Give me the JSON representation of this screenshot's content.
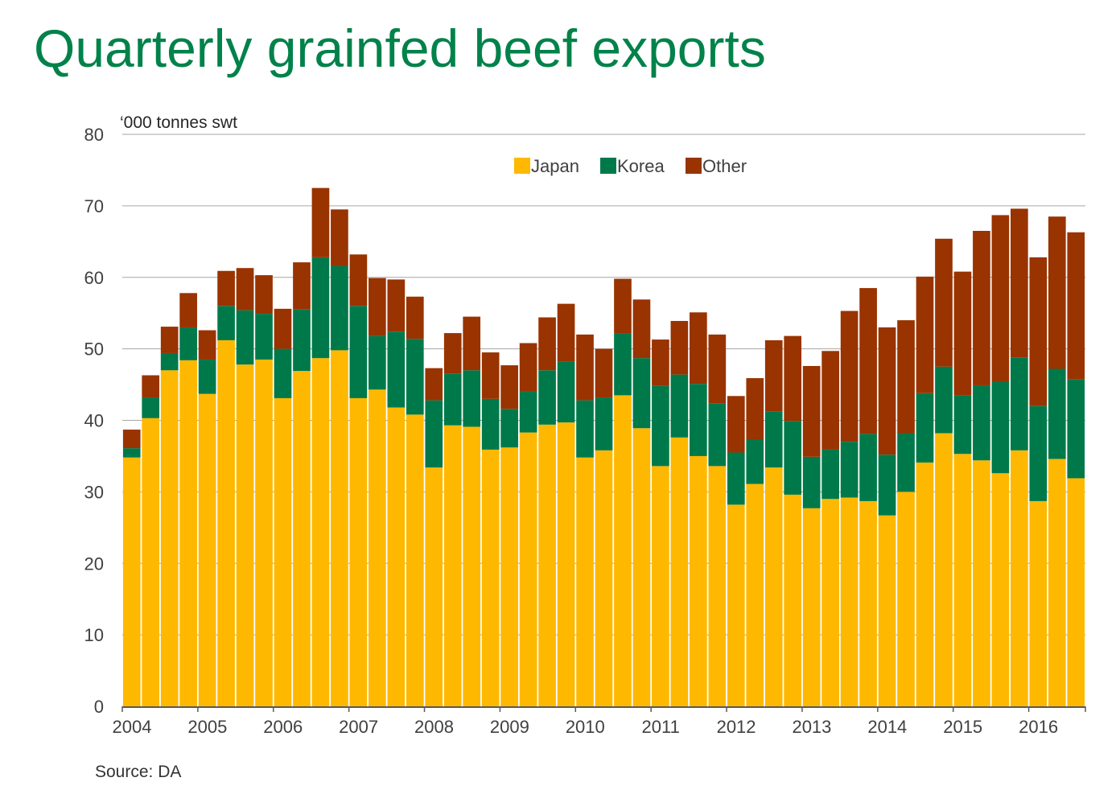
{
  "chart_data": {
    "type": "bar",
    "stacked": true,
    "title": "Quarterly grainfed beef exports",
    "ylabel": "‘000 tonnes swt",
    "source": "Source: DA",
    "ylim": [
      0,
      80
    ],
    "yticks": [
      0,
      10,
      20,
      30,
      40,
      50,
      60,
      70,
      80
    ],
    "year_labels": [
      "2004",
      "2005",
      "2006",
      "2007",
      "2008",
      "2009",
      "2010",
      "2011",
      "2012",
      "2013",
      "2014",
      "2015",
      "2016"
    ],
    "legend_position": "top-center",
    "grid": true,
    "categories": [
      "2004 Q1",
      "2004 Q2",
      "2004 Q3",
      "2004 Q4",
      "2005 Q1",
      "2005 Q2",
      "2005 Q3",
      "2005 Q4",
      "2006 Q1",
      "2006 Q2",
      "2006 Q3",
      "2006 Q4",
      "2007 Q1",
      "2007 Q2",
      "2007 Q3",
      "2007 Q4",
      "2008 Q1",
      "2008 Q2",
      "2008 Q3",
      "2008 Q4",
      "2009 Q1",
      "2009 Q2",
      "2009 Q3",
      "2009 Q4",
      "2010 Q1",
      "2010 Q2",
      "2010 Q3",
      "2010 Q4",
      "2011 Q1",
      "2011 Q2",
      "2011 Q3",
      "2011 Q4",
      "2012 Q1",
      "2012 Q2",
      "2012 Q3",
      "2012 Q4",
      "2013 Q1",
      "2013 Q2",
      "2013 Q3",
      "2013 Q4",
      "2014 Q1",
      "2014 Q2",
      "2014 Q3",
      "2014 Q4",
      "2015 Q1",
      "2015 Q2",
      "2015 Q3",
      "2015 Q4",
      "2016 Q1",
      "2016 Q2",
      "2016 Q3"
    ],
    "series": [
      {
        "name": "Japan",
        "color": "#ffb800",
        "values": [
          34.8,
          40.3,
          47.0,
          48.4,
          43.7,
          51.2,
          47.8,
          48.5,
          43.1,
          46.9,
          48.7,
          49.8,
          43.1,
          44.3,
          41.8,
          40.8,
          33.4,
          39.3,
          39.1,
          35.9,
          36.2,
          38.3,
          39.4,
          39.7,
          34.8,
          35.8,
          43.5,
          38.9,
          33.6,
          37.6,
          35.0,
          33.6,
          28.2,
          31.1,
          33.4,
          29.6,
          27.7,
          29.0,
          29.2,
          28.7,
          26.7,
          30.0,
          34.1,
          38.2,
          35.3,
          34.4,
          32.6,
          35.8,
          28.7,
          34.6,
          31.9
        ]
      },
      {
        "name": "Korea",
        "color": "#00794a",
        "values": [
          1.3,
          2.9,
          2.4,
          4.6,
          4.8,
          4.8,
          7.6,
          6.4,
          6.9,
          8.6,
          14.1,
          11.8,
          12.9,
          7.5,
          10.6,
          10.6,
          9.4,
          7.2,
          7.9,
          7.1,
          5.4,
          5.7,
          7.6,
          8.5,
          8.0,
          7.4,
          8.7,
          9.8,
          11.2,
          8.8,
          10.1,
          8.8,
          7.3,
          6.2,
          7.8,
          10.3,
          7.2,
          6.9,
          7.8,
          9.4,
          8.5,
          8.2,
          9.7,
          9.3,
          8.2,
          10.5,
          12.8,
          13.0,
          13.3,
          12.6,
          13.8
        ]
      },
      {
        "name": "Other",
        "color": "#993300",
        "values": [
          2.6,
          3.1,
          3.7,
          4.8,
          4.1,
          4.9,
          5.9,
          5.4,
          5.6,
          6.6,
          9.7,
          7.9,
          7.2,
          8.1,
          7.3,
          5.9,
          4.5,
          5.7,
          7.5,
          6.5,
          6.1,
          6.8,
          7.4,
          8.1,
          9.2,
          6.8,
          7.6,
          8.2,
          6.5,
          7.5,
          10.0,
          9.6,
          7.9,
          8.6,
          10.0,
          11.9,
          12.7,
          13.8,
          18.3,
          20.4,
          17.8,
          15.8,
          16.3,
          17.9,
          17.3,
          21.6,
          23.3,
          20.8,
          20.8,
          21.3,
          20.6
        ]
      }
    ]
  }
}
